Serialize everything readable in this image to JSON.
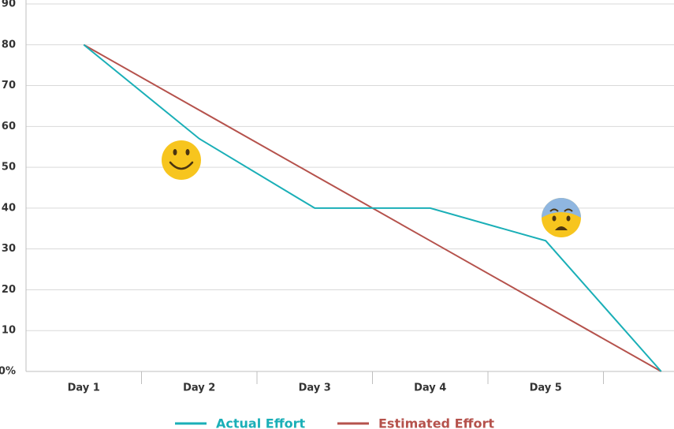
{
  "chart_data": {
    "type": "line",
    "categories": [
      "Day 1",
      "Day 2",
      "Day 3",
      "Day 4",
      "Day 5",
      null
    ],
    "series": [
      {
        "name": "Actual Effort",
        "color": "#1aafb7",
        "values": [
          80,
          57,
          40,
          40,
          32,
          0
        ]
      },
      {
        "name": "Estimated Effort",
        "color": "#b5524c",
        "values": [
          80,
          64,
          48,
          32,
          16,
          0
        ]
      }
    ],
    "ylim": [
      0,
      90
    ],
    "yticks": [
      {
        "value": 0,
        "label": "0%"
      },
      10,
      20,
      30,
      40,
      50,
      60,
      70,
      80,
      90
    ],
    "grid": true,
    "legend": "bottom"
  }
}
